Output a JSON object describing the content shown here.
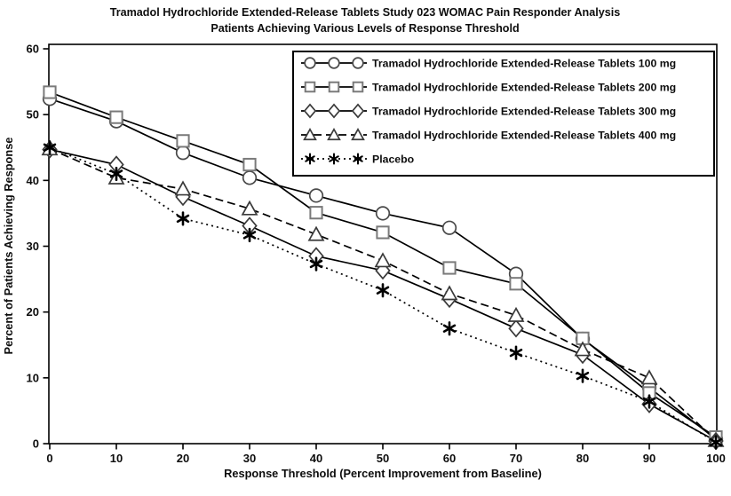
{
  "title": {
    "line1": "Tramadol Hydrochloride Extended-Release Tablets Study 023 WOMAC Pain Responder Analysis",
    "line2": "Patients Achieving Various Levels of Response Threshold"
  },
  "colors": {
    "line": "#000000",
    "text": "#0d0d0d",
    "background": "#ffffff",
    "border": "#000000"
  },
  "chart_data": {
    "type": "line",
    "title": "Tramadol Hydrochloride Extended-Release Tablets Study 023 WOMAC Pain Responder Analysis — Patients Achieving Various Levels of Response Threshold",
    "xlabel": "Response Threshold (Percent Improvement from Baseline)",
    "ylabel": "Percent of Patients Achieving Response",
    "xlim": [
      0,
      100
    ],
    "ylim": [
      0,
      60
    ],
    "x_ticks": [
      0,
      10,
      20,
      30,
      40,
      50,
      60,
      70,
      80,
      90,
      100
    ],
    "y_ticks": [
      0,
      10,
      20,
      30,
      40,
      50,
      60
    ],
    "grid": false,
    "legend_position": "top-right-inside",
    "x": [
      0,
      10,
      20,
      30,
      40,
      50,
      60,
      70,
      80,
      90,
      100
    ],
    "series": [
      {
        "id": "tramadol-er-100mg",
        "name": "Tramadol Hydrochloride Extended-Release Tablets 100 mg",
        "marker": "circle",
        "line": "solid",
        "color": "#000000",
        "marker_color": "#4a4a4a",
        "values": [
          52.4,
          49.0,
          44.2,
          40.4,
          37.7,
          35.0,
          32.8,
          25.8,
          15.9,
          8.5,
          0.7
        ]
      },
      {
        "id": "tramadol-er-200mg",
        "name": "Tramadol Hydrochloride Extended-Release Tablets 200 mg",
        "marker": "square",
        "line": "solid",
        "color": "#000000",
        "marker_color": "#7a7a7a",
        "values": [
          53.4,
          49.6,
          46.0,
          42.4,
          35.1,
          32.1,
          26.7,
          24.3,
          16.0,
          7.7,
          1.0
        ]
      },
      {
        "id": "tramadol-er-300mg",
        "name": "Tramadol Hydrochloride Extended-Release Tablets 300 mg",
        "marker": "diamond",
        "line": "solid",
        "color": "#000000",
        "marker_color": "#3a3a3a",
        "values": [
          44.7,
          42.4,
          37.5,
          33.1,
          28.5,
          26.3,
          22.0,
          17.5,
          13.5,
          6.0,
          0.4
        ]
      },
      {
        "id": "tramadol-er-400mg",
        "name": "Tramadol Hydrochloride Extended-Release Tablets 400 mg",
        "marker": "triangle",
        "line": "dashed",
        "color": "#000000",
        "marker_color": "#3a3a3a",
        "values": [
          44.8,
          40.4,
          38.7,
          35.7,
          31.8,
          27.8,
          22.8,
          19.5,
          14.3,
          10.0,
          0.5
        ]
      },
      {
        "id": "placebo",
        "name": "Placebo",
        "marker": "star",
        "line": "dotted",
        "color": "#000000",
        "marker_color": "#000000",
        "values": [
          45.0,
          41.0,
          34.2,
          31.7,
          27.3,
          23.3,
          17.5,
          13.8,
          10.3,
          6.4,
          0.2
        ]
      }
    ]
  }
}
